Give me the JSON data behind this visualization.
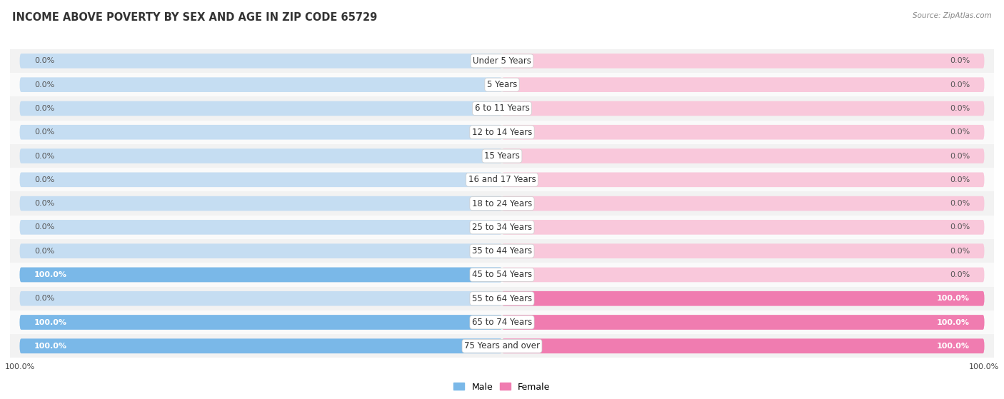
{
  "title": "INCOME ABOVE POVERTY BY SEX AND AGE IN ZIP CODE 65729",
  "source": "Source: ZipAtlas.com",
  "categories": [
    "Under 5 Years",
    "5 Years",
    "6 to 11 Years",
    "12 to 14 Years",
    "15 Years",
    "16 and 17 Years",
    "18 to 24 Years",
    "25 to 34 Years",
    "35 to 44 Years",
    "45 to 54 Years",
    "55 to 64 Years",
    "65 to 74 Years",
    "75 Years and over"
  ],
  "male_values": [
    0.0,
    0.0,
    0.0,
    0.0,
    0.0,
    0.0,
    0.0,
    0.0,
    0.0,
    100.0,
    0.0,
    100.0,
    100.0
  ],
  "female_values": [
    0.0,
    0.0,
    0.0,
    0.0,
    0.0,
    0.0,
    0.0,
    0.0,
    0.0,
    0.0,
    100.0,
    100.0,
    100.0
  ],
  "male_color": "#7ab8e8",
  "female_color": "#f07cb0",
  "male_bg_color": "#c5ddf2",
  "female_bg_color": "#f9c8db",
  "row_bg_even": "#f2f2f2",
  "row_bg_odd": "#fafafa",
  "title_color": "#333333",
  "source_color": "#888888",
  "label_color": "#333333",
  "value_color_inside": "#ffffff",
  "value_color_outside": "#555555",
  "title_fontsize": 10.5,
  "label_fontsize": 8.5,
  "value_fontsize": 8,
  "xlim": 100,
  "legend_male": "Male",
  "legend_female": "Female",
  "bottom_tick_label": "100.0%"
}
